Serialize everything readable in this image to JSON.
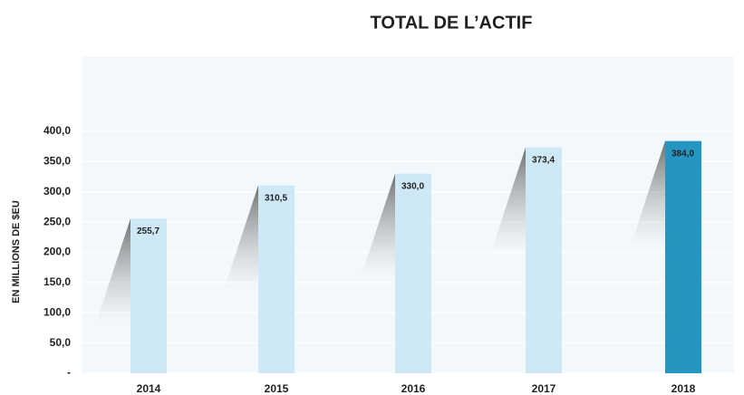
{
  "chart_data": {
    "type": "bar",
    "title": "TOTAL DE L’ACTIF",
    "y_label": "EN MILLIONS DE $EU",
    "categories": [
      "2014",
      "2015",
      "2016",
      "2017",
      "2018"
    ],
    "values": [
      255.7,
      310.5,
      330.0,
      373.4,
      384.0
    ],
    "value_labels": [
      "255,7",
      "310,5",
      "330,0",
      "373,4",
      "384,0"
    ],
    "colors": [
      "#cfe8f6",
      "#cfe8f6",
      "#cfe8f6",
      "#cfe8f6",
      "#2596c1"
    ],
    "ylim": [
      0,
      400
    ],
    "yticks": [
      {
        "value": 0,
        "label": "-"
      },
      {
        "value": 50,
        "label": "50,0"
      },
      {
        "value": 100,
        "label": "100,0"
      },
      {
        "value": 150,
        "label": "150,0"
      },
      {
        "value": 200,
        "label": "200,0"
      },
      {
        "value": 250,
        "label": "250,0"
      },
      {
        "value": 300,
        "label": "300,0"
      },
      {
        "value": 350,
        "label": "350,0"
      },
      {
        "value": 400,
        "label": "400,0"
      }
    ],
    "grid": true
  }
}
